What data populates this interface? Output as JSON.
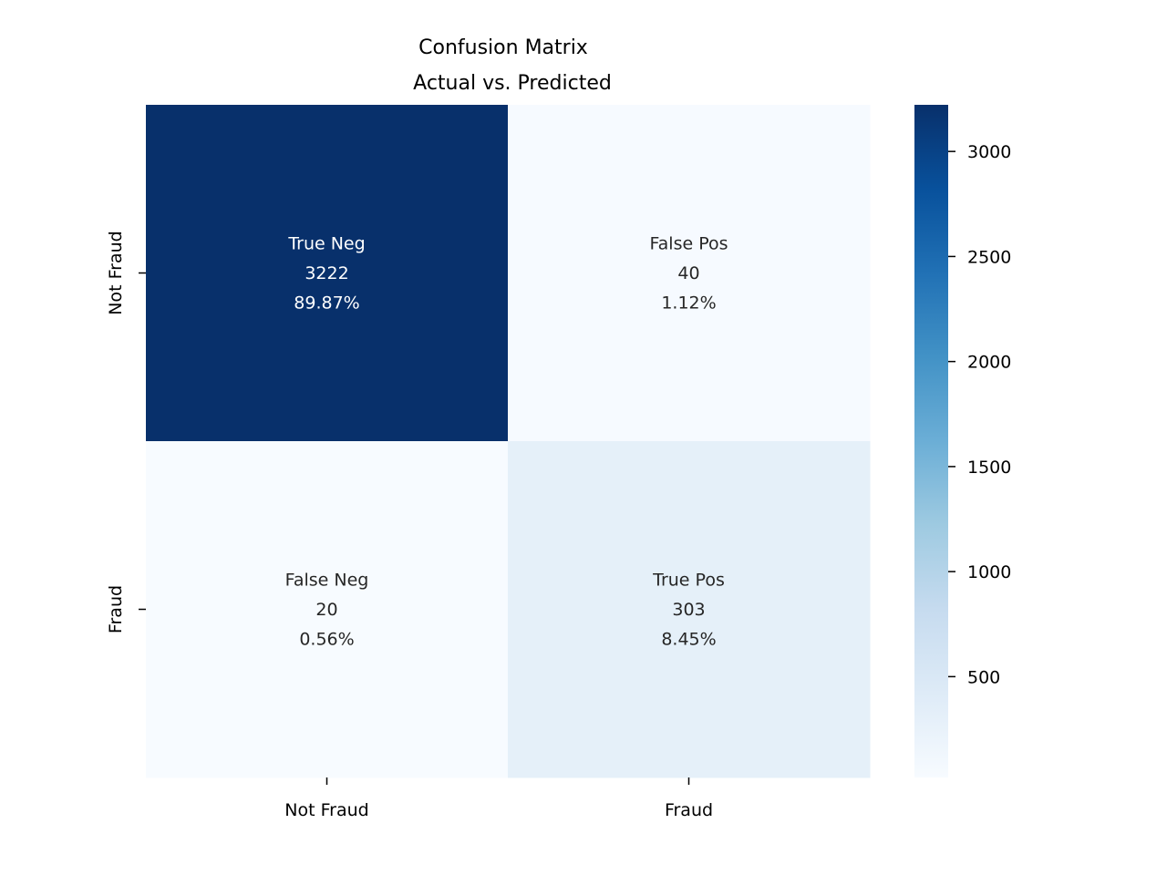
{
  "chart_data": {
    "type": "heatmap",
    "title_lines": [
      "Confusion Matrix",
      "Actual vs. Predicted"
    ],
    "x_tick_labels": [
      "Not Fraud",
      "Fraud"
    ],
    "y_tick_labels": [
      "Not Fraud",
      "Fraud"
    ],
    "cells": [
      [
        {
          "name": "True Neg",
          "count": 3222,
          "percent": "89.87%"
        },
        {
          "name": "False Pos",
          "count": 40,
          "percent": "1.12%"
        }
      ],
      [
        {
          "name": "False Neg",
          "count": 20,
          "percent": "0.56%"
        },
        {
          "name": "True Pos",
          "count": 303,
          "percent": "8.45%"
        }
      ]
    ],
    "colorbar": {
      "colormap": "Blues",
      "vmin": 20,
      "vmax": 3222,
      "ticks": [
        500,
        1000,
        1500,
        2000,
        2500,
        3000
      ]
    },
    "grid": false,
    "legend": "colorbar-right"
  },
  "colors": {
    "blues_stops": [
      "#f7fbff",
      "#deebf7",
      "#c6dbef",
      "#9ecae1",
      "#6baed6",
      "#4292c6",
      "#2171b5",
      "#08519c",
      "#08306b"
    ],
    "text_dark": "#262626",
    "text_light": "#ffffff"
  }
}
